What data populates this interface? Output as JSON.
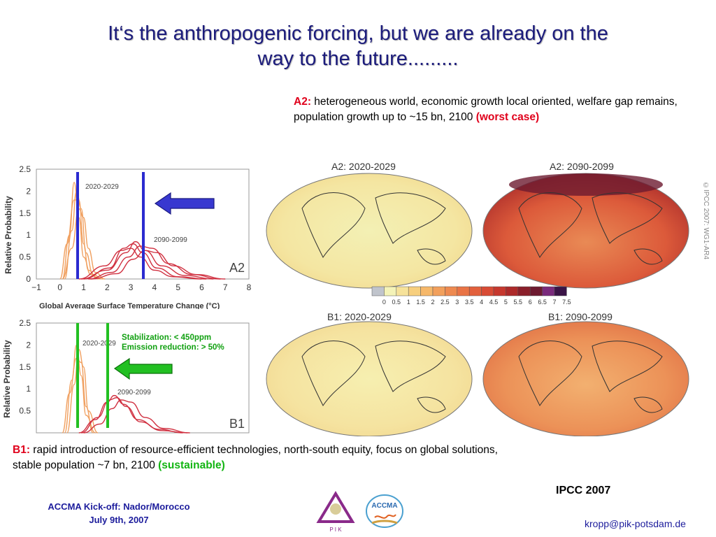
{
  "title_line1": "It‘s the anthropogenic forcing, but we are already on the",
  "title_line2": "way to the future.........",
  "a2": {
    "label": "A2:",
    "text": " heterogeneous world, economic growth local oriented, welfare gap remains, population growth up to ~15 bn, 2100 ",
    "emphasis": "(worst case)"
  },
  "b1": {
    "label": "B1:",
    "text": " rapid introduction of resource-efficient technologies, north-south equity, focus  on global solutions,  stable population ~7 bn, 2100 ",
    "emphasis": "(sustainable)"
  },
  "stabilization": {
    "line1": "Stabilization: < 450ppm",
    "line2": "Emission reduction: > 50%"
  },
  "chart_data": [
    {
      "type": "line",
      "scenario": "A2",
      "ylabel": "Relative Probability",
      "xlabel": "Global Average Surface Temperature Change (°C)",
      "xticks": [
        "−1",
        "0",
        "1",
        "2",
        "3",
        "4",
        "5",
        "6",
        "7",
        "8"
      ],
      "yticks": [
        "0",
        "0.5",
        "1",
        "1.5",
        "2",
        "2.5"
      ],
      "xlim": [
        -1,
        8
      ],
      "ylim": [
        0,
        2.5
      ],
      "period_labels": [
        "2020-2029",
        "2090-2099"
      ],
      "series": [
        {
          "values_x": [
            0.1,
            0.4,
            0.6,
            0.8,
            1.0,
            1.3,
            1.7
          ],
          "values_y": [
            0,
            1.0,
            2.2,
            1.4,
            0.5,
            0.1,
            0
          ]
        },
        {
          "values_x": [
            0.2,
            0.5,
            0.7,
            0.9,
            1.1,
            1.4,
            1.8
          ],
          "values_y": [
            0,
            1.1,
            2.0,
            1.6,
            0.6,
            0.1,
            0
          ]
        },
        {
          "values_x": [
            0.0,
            0.3,
            0.6,
            0.8,
            1.0,
            1.2,
            1.6
          ],
          "values_y": [
            0,
            0.8,
            1.8,
            1.8,
            0.8,
            0.2,
            0
          ]
        },
        {
          "values_x": [
            0.1,
            0.5,
            0.8,
            1.0,
            1.2,
            1.5,
            1.9
          ],
          "values_y": [
            0,
            0.7,
            1.6,
            1.4,
            0.7,
            0.15,
            0
          ]
        },
        {
          "values_x": [
            0.9,
            2.0,
            2.8,
            3.2,
            3.6,
            4.3,
            5.3,
            6.5
          ],
          "values_y": [
            0,
            0.2,
            0.6,
            0.85,
            0.65,
            0.3,
            0.08,
            0
          ]
        },
        {
          "values_x": [
            1.2,
            2.2,
            2.9,
            3.4,
            3.9,
            4.6,
            5.6,
            6.8
          ],
          "values_y": [
            0,
            0.15,
            0.5,
            0.75,
            0.7,
            0.35,
            0.1,
            0
          ]
        },
        {
          "values_x": [
            1.0,
            2.1,
            2.7,
            3.1,
            3.5,
            4.1,
            5.0,
            6.2
          ],
          "values_y": [
            0,
            0.25,
            0.7,
            0.8,
            0.6,
            0.25,
            0.05,
            0
          ]
        },
        {
          "values_x": [
            1.3,
            2.4,
            3.1,
            3.6,
            4.1,
            4.8,
            5.8,
            7.0
          ],
          "values_y": [
            0,
            0.12,
            0.45,
            0.65,
            0.6,
            0.3,
            0.1,
            0
          ]
        },
        {
          "values_x": [
            0.8,
            1.9,
            2.6,
            3.0,
            3.4,
            4.0,
            4.8,
            6.0
          ],
          "values_y": [
            0,
            0.3,
            0.65,
            0.7,
            0.5,
            0.2,
            0.05,
            0
          ]
        }
      ],
      "scenario_label": "A2"
    },
    {
      "type": "line",
      "scenario": "B1",
      "ylabel": "Relative Probability",
      "yticks": [
        "0.5",
        "1",
        "1.5",
        "2",
        "2.5"
      ],
      "ylim": [
        0,
        2.5
      ],
      "period_labels": [
        "2020-2029",
        "2090-2099"
      ],
      "series": [
        {
          "values_x": [
            0.2,
            0.5,
            0.7,
            0.9,
            1.1,
            1.5
          ],
          "values_y": [
            0,
            1.2,
            2.0,
            1.3,
            0.4,
            0
          ]
        },
        {
          "values_x": [
            0.3,
            0.6,
            0.8,
            1.0,
            1.2,
            1.6
          ],
          "values_y": [
            0,
            1.1,
            1.9,
            1.5,
            0.5,
            0
          ]
        },
        {
          "values_x": [
            0.1,
            0.4,
            0.7,
            0.9,
            1.1,
            1.4
          ],
          "values_y": [
            0,
            0.9,
            1.7,
            1.6,
            0.6,
            0
          ]
        },
        {
          "values_x": [
            0.8,
            1.5,
            2.0,
            2.3,
            2.7,
            3.3,
            4.2,
            5.2
          ],
          "values_y": [
            0,
            0.3,
            0.7,
            0.85,
            0.65,
            0.3,
            0.08,
            0
          ]
        },
        {
          "values_x": [
            1.0,
            1.7,
            2.2,
            2.6,
            3.0,
            3.6,
            4.4,
            5.5
          ],
          "values_y": [
            0,
            0.2,
            0.55,
            0.75,
            0.7,
            0.35,
            0.1,
            0
          ]
        },
        {
          "values_x": [
            0.9,
            1.6,
            2.1,
            2.4,
            2.8,
            3.4,
            4.3,
            5.4
          ],
          "values_y": [
            0,
            0.35,
            0.75,
            0.8,
            0.6,
            0.25,
            0.05,
            0
          ]
        }
      ],
      "scenario_label": "B1"
    }
  ],
  "maps": {
    "a2_near": "A2: 2020-2029",
    "a2_far": "A2: 2090-2099",
    "b1_near": "B1: 2020-2029",
    "b1_far": "B1: 2090-2099"
  },
  "colorbar": {
    "labels": [
      "0",
      "0.5",
      "1",
      "1.5",
      "2",
      "2.5",
      "3",
      "3.5",
      "4",
      "4.5",
      "5",
      "5.5",
      "6",
      "6.5",
      "7",
      "7.5"
    ],
    "colors": [
      "#c0c4cc",
      "#f4f3b8",
      "#f6e29a",
      "#f7cf7e",
      "#f6b86a",
      "#f2a05c",
      "#ee8a50",
      "#e97446",
      "#e2603c",
      "#d84b35",
      "#c6382e",
      "#ad2a2a",
      "#8a1f2a",
      "#6d1a30",
      "#7a2a7c",
      "#3a1446"
    ]
  },
  "source": "IPCC 2007",
  "footer": {
    "line1": "ACCMA Kick-off: Nador/Morocco",
    "line2": "July 9th, 2007",
    "email": "kropp@pik-potsdam.de"
  },
  "copyright": "©IPCC 2007: WG1-AR4",
  "logos": {
    "pik": "P I K",
    "accma": "ACCMA"
  },
  "colors": {
    "title": "#1c1c7c",
    "a2_marker": "#2b2bd0",
    "b1_marker": "#22c022",
    "near_curve": "#f0a060",
    "far_curve": "#d03040"
  }
}
